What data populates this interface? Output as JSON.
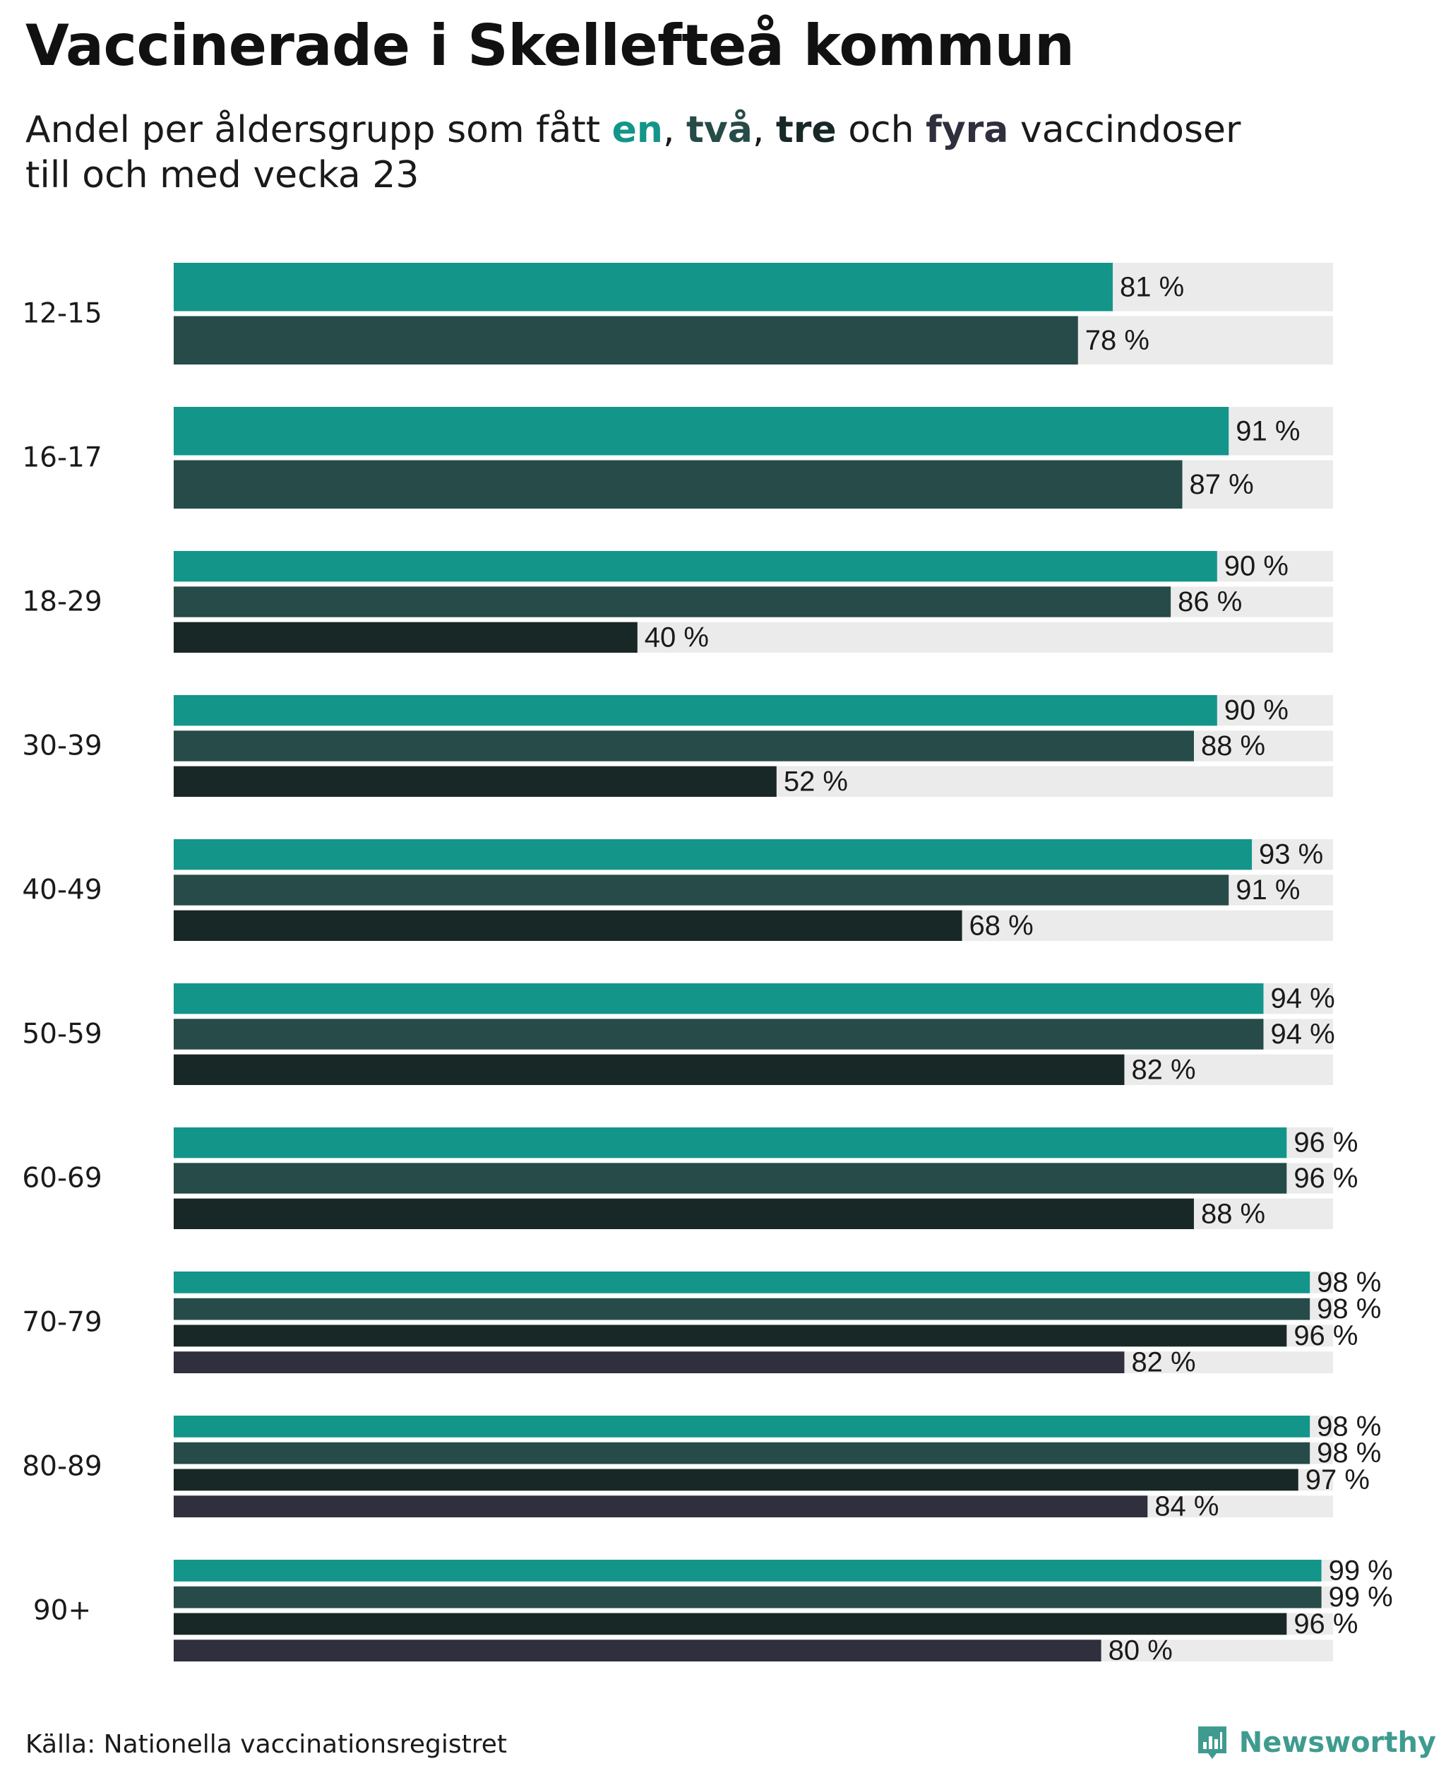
{
  "title": "Vaccinerade i Skellefteå kommun",
  "subtitle": {
    "prefix": "Andel per åldersgrupp som fått ",
    "dose1": "en",
    "sep1": ", ",
    "dose2": "två",
    "sep2": ", ",
    "dose3": "tre",
    "mid": " och ",
    "dose4": "fyra",
    "suffix": " vaccindoser",
    "line2": "till och med vecka 23"
  },
  "colors": {
    "dose1": "#13958a",
    "dose2": "#264b48",
    "dose3": "#182826",
    "dose4": "#2f2f3e",
    "track": "#ebebeb",
    "brand": "#3f9b8f"
  },
  "chart_data": {
    "type": "bar",
    "orientation": "horizontal",
    "title": "Vaccinerade i Skellefteå kommun",
    "subtitle": "Andel per åldersgrupp som fått en, två, tre och fyra vaccindoser till och med vecka 23",
    "xlabel": "",
    "ylabel": "",
    "xlim": [
      0,
      100
    ],
    "unit_suffix": " %",
    "categories": [
      "12-15",
      "16-17",
      "18-29",
      "30-39",
      "40-49",
      "50-59",
      "60-69",
      "70-79",
      "80-89",
      "90+"
    ],
    "series": [
      {
        "name": "en",
        "values": [
          81,
          91,
          90,
          90,
          93,
          94,
          96,
          98,
          98,
          99
        ]
      },
      {
        "name": "två",
        "values": [
          78,
          87,
          86,
          88,
          91,
          94,
          96,
          98,
          98,
          99
        ]
      },
      {
        "name": "tre",
        "values": [
          null,
          null,
          40,
          52,
          68,
          82,
          88,
          96,
          97,
          96
        ]
      },
      {
        "name": "fyra",
        "values": [
          null,
          null,
          null,
          null,
          null,
          null,
          null,
          82,
          84,
          80
        ]
      }
    ]
  },
  "footer": {
    "source": "Källa: Nationella vaccinationsregistret",
    "brand": "Newsworthy"
  }
}
